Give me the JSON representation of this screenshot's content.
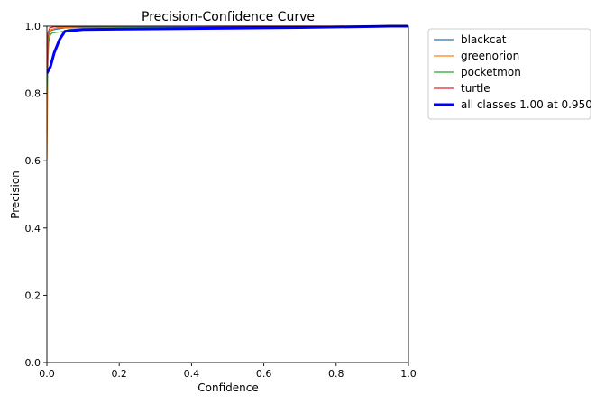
{
  "chart_data": {
    "type": "line",
    "title": "Precision-Confidence Curve",
    "xlabel": "Confidence",
    "ylabel": "Precision",
    "xlim": [
      0,
      1
    ],
    "ylim": [
      0,
      1
    ],
    "xticks": [
      "0.0",
      "0.2",
      "0.4",
      "0.6",
      "0.8",
      "1.0"
    ],
    "yticks": [
      "0.0",
      "0.2",
      "0.4",
      "0.6",
      "0.8",
      "1.0"
    ],
    "grid": false,
    "legend_position": "outside-top-right",
    "series": [
      {
        "name": "blackcat",
        "color": "#1f77b4",
        "width": "thin",
        "points": [
          [
            0.0,
            0.72
          ],
          [
            0.003,
            0.96
          ],
          [
            0.008,
            0.985
          ],
          [
            0.02,
            0.99
          ],
          [
            0.05,
            0.995
          ],
          [
            0.2,
            0.997
          ],
          [
            0.5,
            0.998
          ],
          [
            0.8,
            0.999
          ],
          [
            1.0,
            1.0
          ]
        ]
      },
      {
        "name": "greenorion",
        "color": "#ff7f0e",
        "width": "thin",
        "points": [
          [
            0.0,
            0.6
          ],
          [
            0.003,
            0.9
          ],
          [
            0.006,
            0.97
          ],
          [
            0.012,
            0.99
          ],
          [
            0.03,
            0.995
          ],
          [
            0.1,
            0.998
          ],
          [
            0.5,
            0.999
          ],
          [
            1.0,
            1.0
          ]
        ]
      },
      {
        "name": "pocketmon",
        "color": "#2ca02c",
        "width": "thin",
        "points": [
          [
            0.0,
            0.8
          ],
          [
            0.004,
            0.95
          ],
          [
            0.01,
            0.975
          ],
          [
            0.015,
            0.98
          ],
          [
            0.03,
            0.982
          ],
          [
            0.05,
            0.985
          ],
          [
            0.06,
            0.99
          ],
          [
            0.2,
            0.995
          ],
          [
            0.6,
            0.998
          ],
          [
            1.0,
            1.0
          ]
        ]
      },
      {
        "name": "turtle",
        "color": "#d62728",
        "width": "thin",
        "points": [
          [
            0.0,
            0.85
          ],
          [
            0.003,
            0.98
          ],
          [
            0.008,
            0.995
          ],
          [
            0.02,
            0.998
          ],
          [
            0.1,
            0.999
          ],
          [
            0.5,
            1.0
          ],
          [
            1.0,
            1.0
          ]
        ]
      },
      {
        "name": "all classes 1.00 at 0.950",
        "color": "#0000ff",
        "width": "thick",
        "points": [
          [
            0.0,
            0.86
          ],
          [
            0.01,
            0.88
          ],
          [
            0.02,
            0.92
          ],
          [
            0.035,
            0.96
          ],
          [
            0.05,
            0.985
          ],
          [
            0.1,
            0.99
          ],
          [
            0.3,
            0.992
          ],
          [
            0.5,
            0.994
          ],
          [
            0.7,
            0.996
          ],
          [
            0.9,
            0.999
          ],
          [
            0.95,
            1.0
          ],
          [
            1.0,
            1.0
          ]
        ]
      }
    ]
  }
}
